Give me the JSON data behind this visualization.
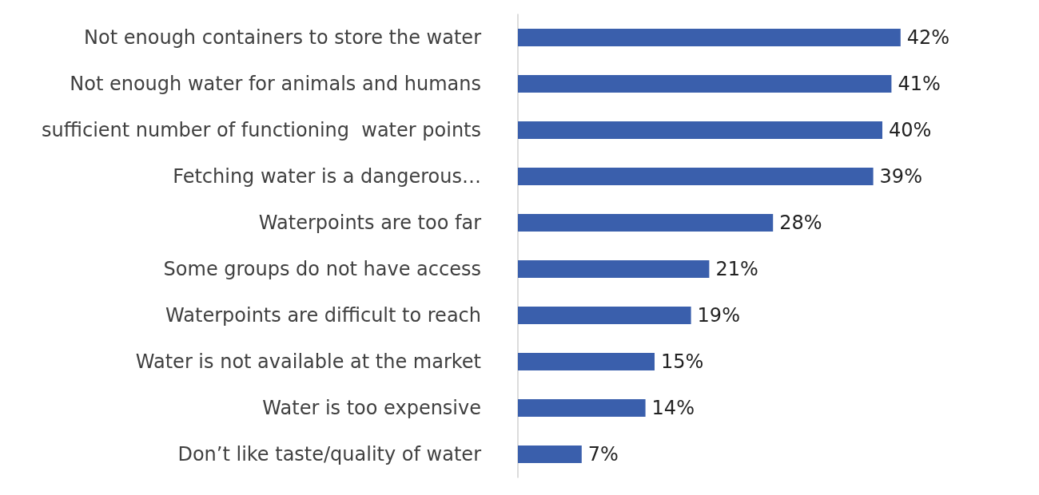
{
  "chart_data": {
    "type": "bar",
    "orientation": "horizontal",
    "categories": [
      "Not enough containers to store the water",
      "Not enough water for animals and humans",
      "sufficient number of functioning  water points",
      "Fetching water is a dangerous…",
      "Waterpoints are too far",
      "Some groups do not have access",
      "Waterpoints are difficult to reach",
      "Water is not available at the market",
      "Water is too expensive",
      "Don’t like taste/quality of water"
    ],
    "values": [
      42,
      41,
      40,
      39,
      28,
      21,
      19,
      15,
      14,
      7
    ],
    "value_labels": [
      "42%",
      "41%",
      "40%",
      "39%",
      "28%",
      "21%",
      "19%",
      "15%",
      "14%",
      "7%"
    ],
    "color": "#3a5fac"
  }
}
